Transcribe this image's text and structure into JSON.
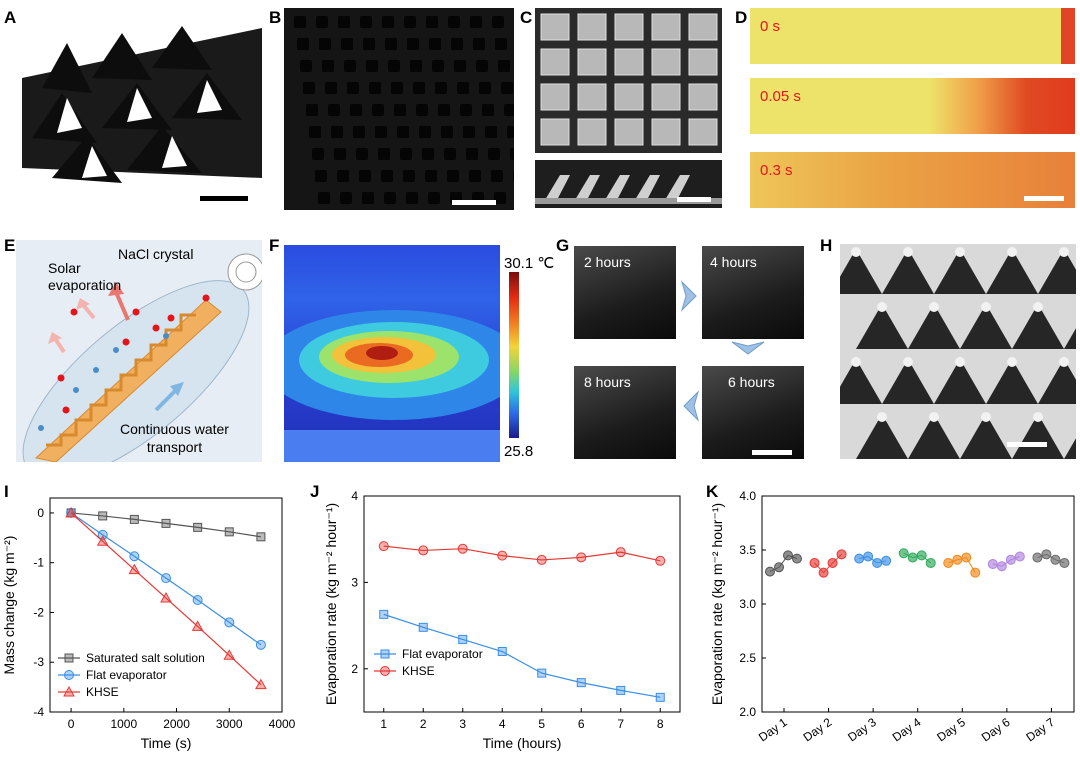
{
  "labels": {
    "A": "A",
    "B": "B",
    "C": "C",
    "D": "D",
    "E": "E",
    "F": "F",
    "G": "G",
    "H": "H",
    "I": "I",
    "J": "J",
    "K": "K"
  },
  "panel_d": {
    "times": [
      "0 s",
      "0.05 s",
      "0.3 s"
    ]
  },
  "panel_e": {
    "nacl": "NaCl crystal",
    "solar_line1": "Solar",
    "solar_line2": "evaporation",
    "water_line1": "Continuous water",
    "water_line2": "transport"
  },
  "panel_f": {
    "max": "30.1 ℃",
    "min": "25.8"
  },
  "panel_g": {
    "times": [
      "2 hours",
      "4 hours",
      "8 hours",
      "6 hours"
    ]
  },
  "colors": {
    "black": "#444444",
    "blue": "#3a8ee6",
    "red": "#e53935",
    "orange": "#f08a1c"
  },
  "chart_data": [
    {
      "panel": "I",
      "type": "line",
      "xlabel": "Time (s)",
      "ylabel": "Mass change (kg m⁻²)",
      "xlim": [
        -400,
        4000
      ],
      "ylim": [
        -4,
        0.3
      ],
      "xticks": [
        0,
        1000,
        2000,
        3000,
        4000
      ],
      "yticks": [
        0,
        -1,
        -2,
        -3,
        -4
      ],
      "legend": "bottom-left",
      "series": [
        {
          "name": "Saturated salt solution",
          "color": "#555555",
          "marker": "square",
          "x": [
            0,
            600,
            1200,
            1800,
            2400,
            3000,
            3600
          ],
          "values": [
            0,
            -0.06,
            -0.13,
            -0.21,
            -0.29,
            -0.38,
            -0.48
          ]
        },
        {
          "name": "Flat evaporator",
          "color": "#3a8ee6",
          "marker": "circle",
          "x": [
            0,
            600,
            1200,
            1800,
            2400,
            3000,
            3600
          ],
          "values": [
            0,
            -0.44,
            -0.87,
            -1.31,
            -1.75,
            -2.2,
            -2.65
          ]
        },
        {
          "name": "KHSE",
          "color": "#e53935",
          "marker": "triangle",
          "x": [
            0,
            600,
            1200,
            1800,
            2400,
            3000,
            3600
          ],
          "values": [
            0,
            -0.57,
            -1.14,
            -1.71,
            -2.28,
            -2.86,
            -3.45
          ]
        }
      ]
    },
    {
      "panel": "J",
      "type": "line",
      "xlabel": "Time (hours)",
      "ylabel": "Evaporation rate (kg m⁻² hour⁻¹)",
      "xlim": [
        0.5,
        8.5
      ],
      "ylim": [
        1.5,
        4
      ],
      "xticks": [
        1,
        2,
        3,
        4,
        5,
        6,
        7,
        8
      ],
      "yticks": [
        2,
        3,
        4
      ],
      "legend": "bottom-left",
      "series": [
        {
          "name": "Flat evaporator",
          "color": "#3a8ee6",
          "marker": "square",
          "x": [
            1,
            2,
            3,
            4,
            5,
            6,
            7,
            8
          ],
          "values": [
            2.63,
            2.48,
            2.34,
            2.2,
            1.95,
            1.84,
            1.75,
            1.67
          ]
        },
        {
          "name": "KHSE",
          "color": "#e53935",
          "marker": "circle",
          "x": [
            1,
            2,
            3,
            4,
            5,
            6,
            7,
            8
          ],
          "values": [
            3.42,
            3.37,
            3.39,
            3.31,
            3.26,
            3.29,
            3.35,
            3.25
          ]
        }
      ]
    },
    {
      "panel": "K",
      "type": "scatter",
      "xlabel": "",
      "ylabel": "Evaporation rate (kg m⁻² hour⁻¹)",
      "ylim": [
        2,
        4
      ],
      "yticks": [
        2.0,
        2.5,
        3.0,
        3.5,
        4.0
      ],
      "categories": [
        "Day 1",
        "Day 2",
        "Day 3",
        "Day 4",
        "Day 5",
        "Day 6",
        "Day 7"
      ],
      "series": [
        {
          "name": "Day 1",
          "color": "#555555",
          "values": [
            3.3,
            3.34,
            3.45,
            3.42
          ]
        },
        {
          "name": "Day 2",
          "color": "#e53935",
          "values": [
            3.38,
            3.29,
            3.38,
            3.46
          ]
        },
        {
          "name": "Day 3",
          "color": "#3a8ee6",
          "values": [
            3.42,
            3.44,
            3.38,
            3.4
          ]
        },
        {
          "name": "Day 4",
          "color": "#2eaa5a",
          "values": [
            3.47,
            3.43,
            3.45,
            3.38
          ]
        },
        {
          "name": "Day 5",
          "color": "#f08a1c",
          "values": [
            3.38,
            3.41,
            3.43,
            3.29
          ]
        },
        {
          "name": "Day 6",
          "color": "#b084e0",
          "values": [
            3.37,
            3.35,
            3.41,
            3.44
          ]
        },
        {
          "name": "Day 7",
          "color": "#6a6a6a",
          "values": [
            3.43,
            3.46,
            3.41,
            3.38
          ]
        }
      ]
    }
  ]
}
